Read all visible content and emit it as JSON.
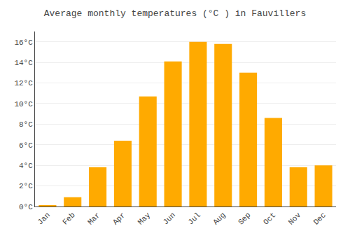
{
  "chart_data": {
    "type": "bar",
    "title": "Average monthly temperatures (°C ) in Fauvillers",
    "categories": [
      "Jan",
      "Feb",
      "Mar",
      "Apr",
      "May",
      "Jun",
      "Jul",
      "Aug",
      "Sep",
      "Oct",
      "Nov",
      "Dec"
    ],
    "values": [
      0.1,
      0.9,
      3.8,
      6.4,
      10.7,
      14.1,
      16.0,
      15.8,
      13.0,
      8.6,
      3.8,
      4.0
    ],
    "color": "#FFAA00",
    "ylim": [
      0,
      17
    ],
    "yticks": [
      {
        "value": 0,
        "label": "0°C"
      },
      {
        "value": 2,
        "label": "2°C"
      },
      {
        "value": 4,
        "label": "4°C"
      },
      {
        "value": 6,
        "label": "6°C"
      },
      {
        "value": 8,
        "label": "8°C"
      },
      {
        "value": 10,
        "label": "10°C"
      },
      {
        "value": 12,
        "label": "12°C"
      },
      {
        "value": 14,
        "label": "14°C"
      },
      {
        "value": 16,
        "label": "16°C"
      }
    ],
    "grid": true
  }
}
